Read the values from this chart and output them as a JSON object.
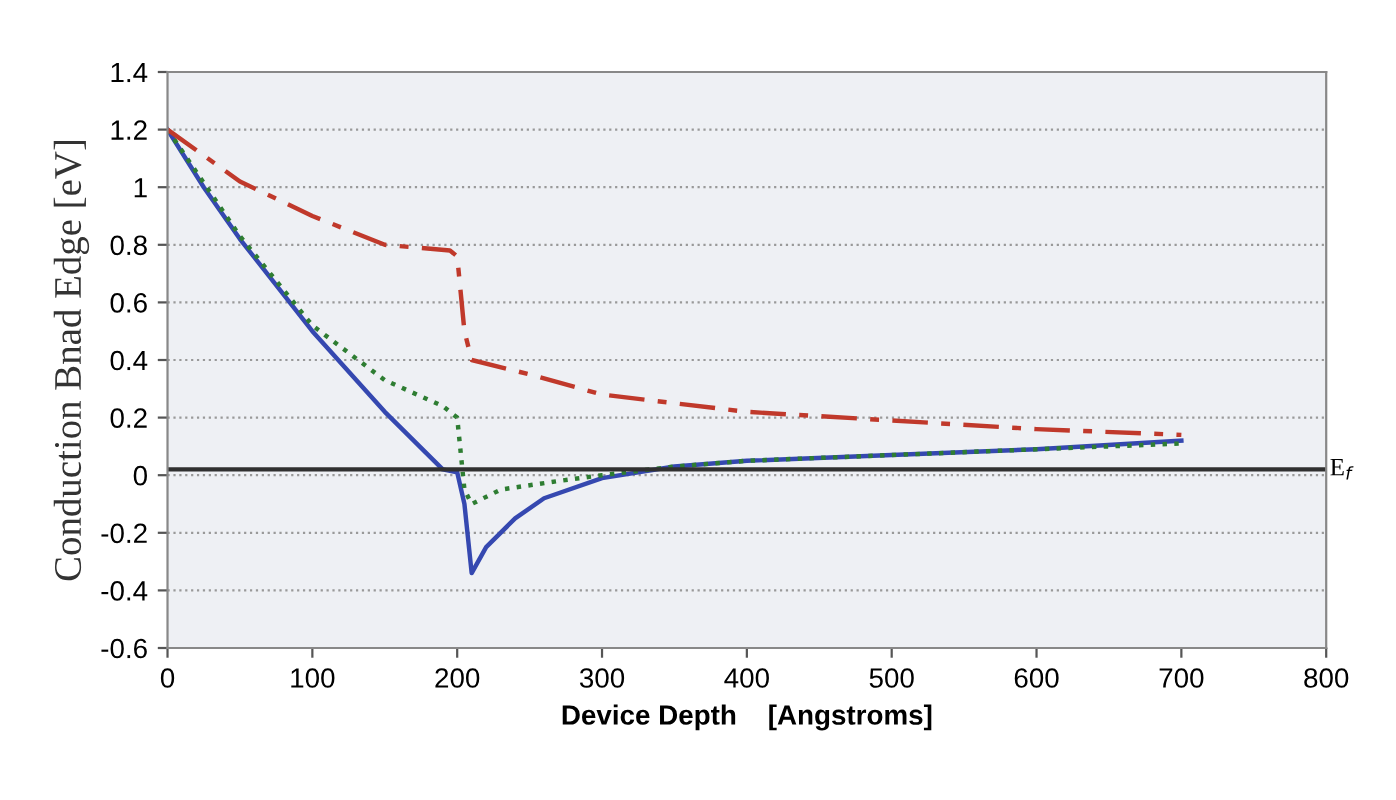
{
  "chart_data": {
    "type": "line",
    "xlabel": "Device Depth    [Angstroms]",
    "ylabel": "Conduction Bnad Edge [eV]",
    "xlim": [
      0,
      800
    ],
    "xticks": [
      0,
      100,
      200,
      300,
      400,
      500,
      600,
      700,
      800
    ],
    "ylim": [
      -0.6,
      1.4
    ],
    "yticks": [
      -0.6,
      -0.4,
      -0.2,
      0,
      0.2,
      0.4,
      0.6,
      0.8,
      1,
      1.2,
      1.4
    ],
    "grid": "y",
    "legend": false,
    "marker": "none",
    "ref_lines": [
      {
        "axis": "y",
        "value": 0.02,
        "label": "E$_{f}$",
        "color": "#303030",
        "line_style": "solid"
      }
    ],
    "series": [
      {
        "color": "#3548b0",
        "line_style": "solid",
        "x": [
          0,
          25,
          50,
          100,
          150,
          190,
          200,
          205,
          210,
          220,
          240,
          260,
          300,
          350,
          400,
          500,
          600,
          700
        ],
        "values": [
          1.2,
          1.0,
          0.82,
          0.5,
          0.22,
          0.02,
          0.01,
          -0.1,
          -0.34,
          -0.25,
          -0.15,
          -0.08,
          -0.01,
          0.03,
          0.05,
          0.07,
          0.09,
          0.12
        ]
      },
      {
        "color": "#2e7d32",
        "line_style": "dotted",
        "x": [
          0,
          50,
          100,
          150,
          190,
          200,
          205,
          210,
          230,
          270,
          300,
          350,
          400,
          500,
          600,
          700
        ],
        "values": [
          1.2,
          0.83,
          0.52,
          0.33,
          0.24,
          0.2,
          -0.05,
          -0.1,
          -0.05,
          -0.02,
          0.0,
          0.03,
          0.05,
          0.07,
          0.09,
          0.11
        ]
      },
      {
        "color": "#c0392b",
        "line_style": "dashdot",
        "x": [
          0,
          50,
          100,
          150,
          195,
          200,
          205,
          210,
          250,
          300,
          350,
          400,
          500,
          600,
          700
        ],
        "values": [
          1.2,
          1.02,
          0.9,
          0.8,
          0.78,
          0.76,
          0.5,
          0.4,
          0.35,
          0.28,
          0.25,
          0.22,
          0.19,
          0.16,
          0.14
        ]
      }
    ]
  }
}
